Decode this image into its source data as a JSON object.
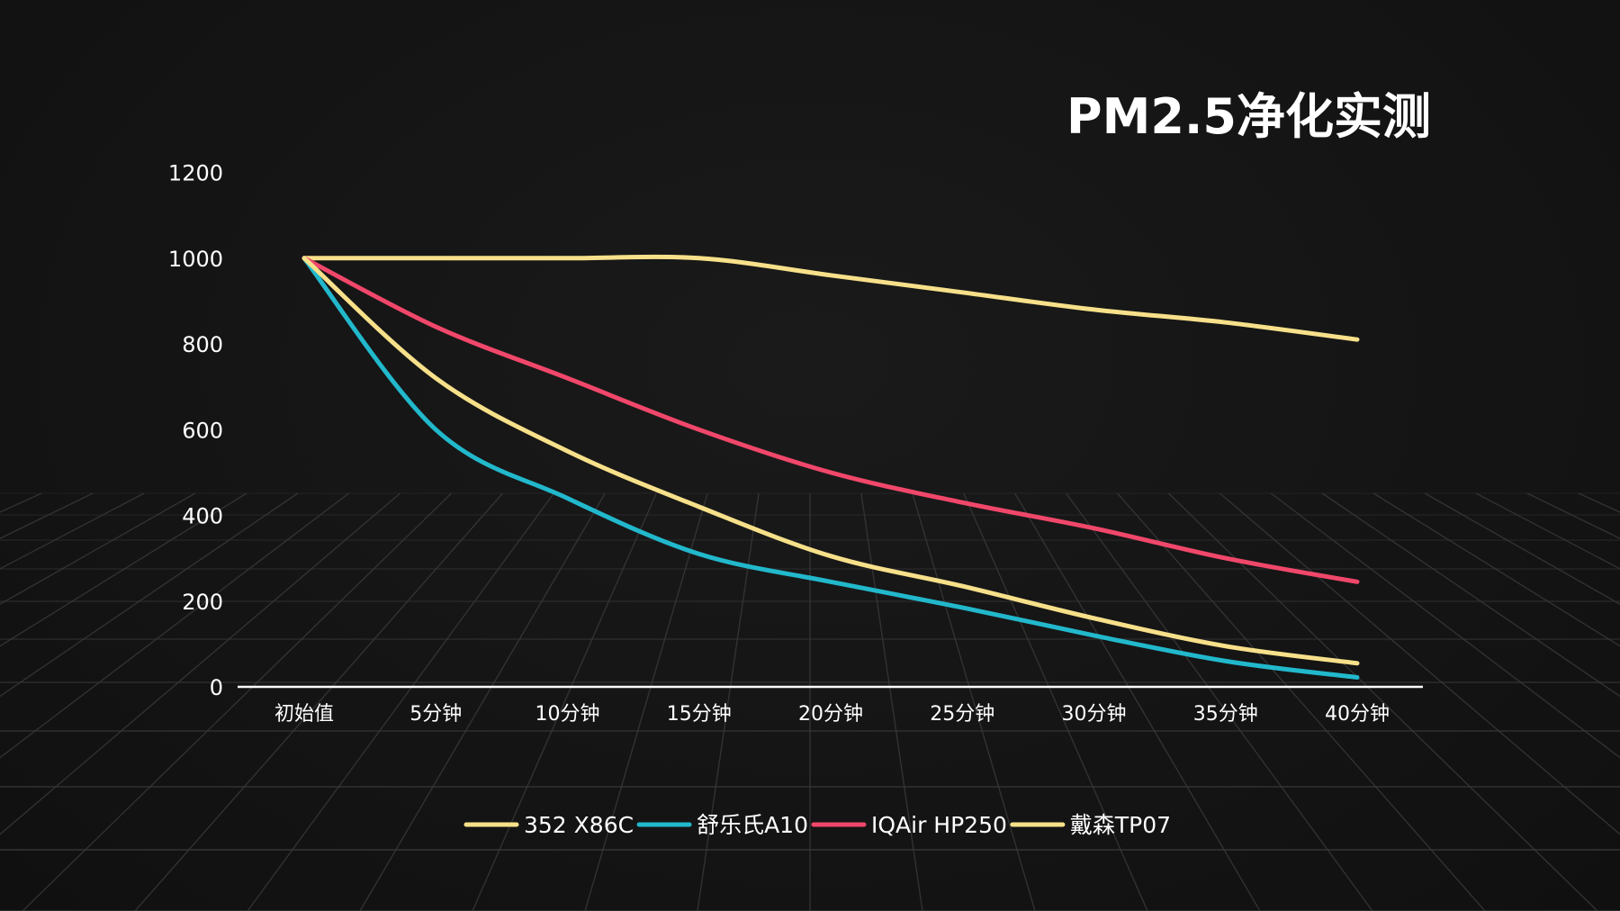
{
  "chart_data": {
    "type": "line",
    "title": "PM2.5净化实测",
    "categories": [
      "初始值",
      "5分钟",
      "10分钟",
      "15分钟",
      "20分钟",
      "25分钟",
      "30分钟",
      "35分钟",
      "40分钟"
    ],
    "ylim": [
      0,
      1200
    ],
    "yticks": [
      "0",
      "200",
      "400",
      "600",
      "800",
      "1000",
      "1200"
    ],
    "xlabel": "",
    "ylabel": "",
    "legend_position": "bottom",
    "series": [
      {
        "name": "352 X86C",
        "color": "#f7e08a",
        "values": [
          1000,
          1000,
          1000,
          1000,
          960,
          920,
          880,
          850,
          810
        ]
      },
      {
        "name": "舒乐氏A10",
        "color": "#22b8cc",
        "values": [
          1000,
          600,
          440,
          310,
          245,
          185,
          120,
          60,
          22
        ]
      },
      {
        "name": "IQAir HP250",
        "color": "#f0476a",
        "values": [
          1000,
          840,
          720,
          600,
          500,
          430,
          370,
          300,
          245
        ]
      },
      {
        "name": "戴森TP07",
        "color": "#f7e08a",
        "values": [
          1000,
          720,
          550,
          420,
          305,
          235,
          160,
          95,
          55
        ]
      }
    ]
  }
}
